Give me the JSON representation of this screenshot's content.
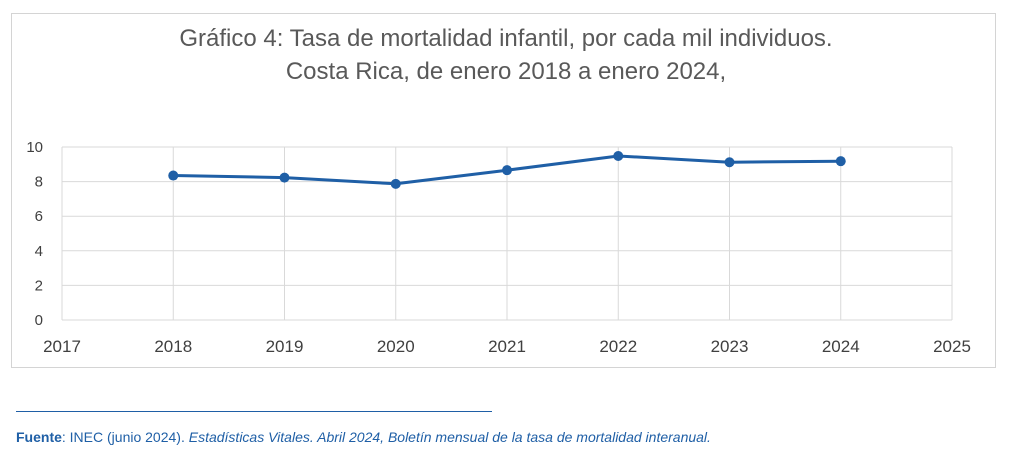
{
  "chart_data": {
    "type": "line",
    "title_line1": "Gráfico 4: Tasa de mortalidad infantil, por cada mil individuos.",
    "title_line2": "Costa Rica, de enero 2018 a enero 2024,",
    "xlabel": "",
    "ylabel": "",
    "xlim": [
      2017,
      2025
    ],
    "ylim": [
      0,
      10
    ],
    "x_ticks": [
      "2017",
      "2018",
      "2019",
      "2020",
      "2021",
      "2022",
      "2023",
      "2024",
      "2025"
    ],
    "y_ticks": [
      "0",
      "2",
      "4",
      "6",
      "8",
      "10"
    ],
    "grid": true,
    "series": [
      {
        "name": "Tasa de mortalidad infantil",
        "color": "#1f5fa6",
        "x": [
          2018,
          2019,
          2020,
          2021,
          2022,
          2023,
          2024
        ],
        "values": [
          8.35,
          8.23,
          7.87,
          8.66,
          9.48,
          9.12,
          9.18
        ]
      }
    ]
  },
  "source": {
    "label": "Fuente",
    "sep": ": ",
    "author": "INEC (junio 2024). ",
    "title_italic": "Estadísticas Vitales. Abril 2024, Boletín mensual de la tasa de mortalidad interanual."
  }
}
